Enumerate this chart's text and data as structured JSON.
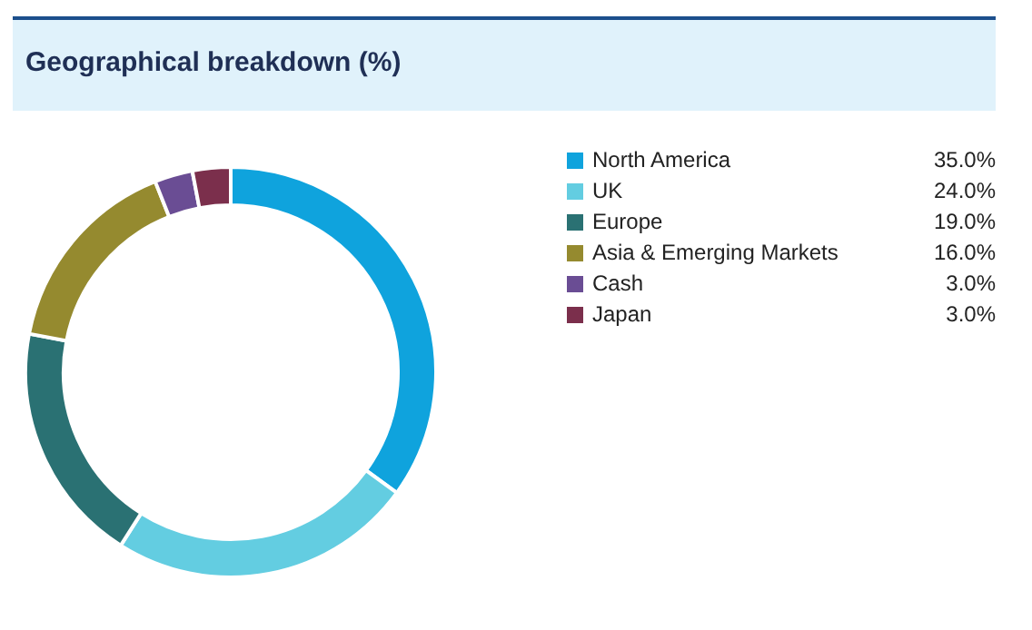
{
  "chart_data": {
    "type": "donut",
    "title": "Geographical breakdown (%)",
    "categories": [
      "North America",
      "UK",
      "Europe",
      "Asia & Emerging Markets",
      "Cash",
      "Japan"
    ],
    "values": [
      35,
      24,
      19,
      16,
      3,
      3
    ],
    "colors": [
      "#0fa3dd",
      "#63cde1",
      "#2a7173",
      "#958a2f",
      "#6a4d94",
      "#7b2f4c"
    ],
    "value_labels": [
      "35.0%",
      "24.0%",
      "19.0%",
      "16.0%",
      "3.0%",
      "3.0%"
    ],
    "legend": "right"
  }
}
